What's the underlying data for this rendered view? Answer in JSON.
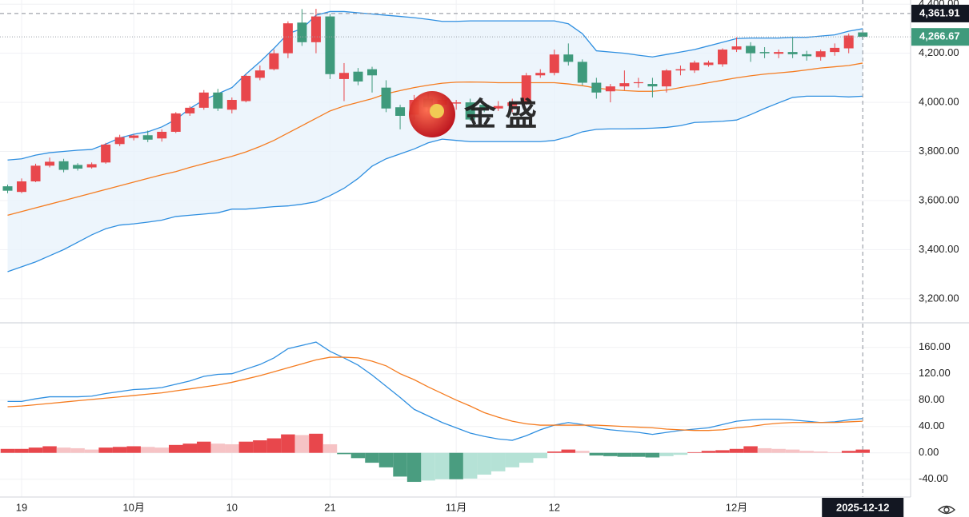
{
  "chart_data": [
    {
      "type": "candlestick",
      "categories": [
        null,
        "19",
        null,
        null,
        null,
        null,
        null,
        null,
        null,
        "10月",
        null,
        null,
        null,
        null,
        null,
        null,
        "10",
        null,
        null,
        null,
        null,
        null,
        null,
        "21",
        null,
        null,
        null,
        null,
        null,
        null,
        null,
        null,
        "11月",
        null,
        null,
        null,
        null,
        null,
        null,
        "12",
        null,
        null,
        null,
        null,
        null,
        null,
        null,
        null,
        null,
        null,
        null,
        null,
        "12月",
        null,
        null,
        null,
        null,
        null,
        null,
        null,
        null,
        null
      ],
      "open": [
        3658,
        3635,
        3678,
        3742,
        3760,
        3745,
        3735,
        3755,
        3830,
        3855,
        3866,
        3853,
        3880,
        3955,
        3978,
        4040,
        3970,
        4005,
        4100,
        4135,
        4200,
        4325,
        4245,
        4350,
        4095,
        4125,
        4135,
        4060,
        3980,
        3950,
        4015,
        3990,
        3995,
        4000,
        3990,
        3975,
        3985,
        3995,
        4110,
        4120,
        4195,
        4165,
        4080,
        4045,
        4065,
        4078,
        4075,
        4065,
        4130,
        4130,
        4152,
        4155,
        4215,
        4230,
        4205,
        4198,
        4205,
        4196,
        4185,
        4205,
        4220,
        4285
      ],
      "high": [
        3665,
        3690,
        3750,
        3775,
        3770,
        3752,
        3755,
        3835,
        3868,
        3870,
        3885,
        3890,
        3960,
        3985,
        4050,
        4055,
        4020,
        4115,
        4150,
        4215,
        4330,
        4380,
        4381,
        4360,
        4160,
        4140,
        4145,
        4090,
        3990,
        4030,
        4040,
        4020,
        4010,
        4015,
        3995,
        4005,
        4015,
        4120,
        4135,
        4215,
        4240,
        4175,
        4100,
        4075,
        4130,
        4100,
        4100,
        4135,
        4150,
        4170,
        4170,
        4220,
        4265,
        4245,
        4225,
        4215,
        4265,
        4210,
        4215,
        4240,
        4280,
        4290
      ],
      "low": [
        3630,
        3630,
        3675,
        3735,
        3715,
        3722,
        3730,
        3750,
        3822,
        3845,
        3838,
        3840,
        3875,
        3945,
        3970,
        3965,
        3955,
        4000,
        4090,
        4130,
        4180,
        4230,
        4200,
        4095,
        4005,
        4070,
        4040,
        3960,
        3890,
        3930,
        3960,
        3970,
        3970,
        3925,
        3960,
        3965,
        3960,
        3990,
        4100,
        4110,
        4150,
        4070,
        4015,
        4000,
        4050,
        4060,
        4020,
        4040,
        4110,
        4120,
        4145,
        4145,
        4205,
        4165,
        4180,
        4180,
        4180,
        4170,
        4170,
        4190,
        4200,
        4255
      ],
      "close": [
        3640,
        3678,
        3742,
        3758,
        3725,
        3730,
        3748,
        3828,
        3858,
        3865,
        3848,
        3880,
        3955,
        3978,
        4040,
        3975,
        4010,
        4108,
        4130,
        4200,
        4322,
        4245,
        4350,
        4115,
        4120,
        4085,
        4110,
        3975,
        3945,
        4010,
        3980,
        4010,
        4000,
        3930,
        3975,
        3985,
        4000,
        4110,
        4120,
        4195,
        4165,
        4080,
        4040,
        4065,
        4078,
        4082,
        4065,
        4130,
        4135,
        4162,
        4162,
        4215,
        4228,
        4200,
        4200,
        4205,
        4196,
        4188,
        4208,
        4222,
        4272,
        4267
      ],
      "bands": {
        "upper": [
          3765,
          3770,
          3785,
          3795,
          3800,
          3805,
          3808,
          3830,
          3855,
          3870,
          3880,
          3900,
          3930,
          3975,
          4010,
          4035,
          4060,
          4115,
          4165,
          4220,
          4280,
          4300,
          4355,
          4370,
          4370,
          4365,
          4360,
          4355,
          4350,
          4345,
          4338,
          4330,
          4330,
          4332,
          4332,
          4332,
          4332,
          4332,
          4332,
          4332,
          4320,
          4280,
          4210,
          4205,
          4200,
          4192,
          4185,
          4195,
          4205,
          4215,
          4230,
          4245,
          4260,
          4262,
          4262,
          4262,
          4265,
          4265,
          4270,
          4275,
          4290,
          4300
        ],
        "middle": [
          3540,
          3555,
          3570,
          3585,
          3600,
          3615,
          3630,
          3645,
          3660,
          3675,
          3690,
          3705,
          3718,
          3735,
          3750,
          3765,
          3780,
          3798,
          3820,
          3845,
          3875,
          3905,
          3935,
          3965,
          3985,
          4000,
          4015,
          4035,
          4048,
          4060,
          4070,
          4078,
          4082,
          4083,
          4082,
          4080,
          4080,
          4080,
          4080,
          4080,
          4075,
          4068,
          4058,
          4052,
          4048,
          4045,
          4045,
          4050,
          4060,
          4070,
          4080,
          4090,
          4100,
          4108,
          4115,
          4120,
          4125,
          4132,
          4140,
          4145,
          4150,
          4160
        ],
        "lower": [
          3310,
          3330,
          3350,
          3375,
          3400,
          3430,
          3460,
          3485,
          3500,
          3505,
          3512,
          3520,
          3535,
          3540,
          3545,
          3550,
          3565,
          3565,
          3570,
          3575,
          3578,
          3585,
          3595,
          3620,
          3650,
          3690,
          3740,
          3770,
          3790,
          3810,
          3835,
          3850,
          3845,
          3840,
          3840,
          3840,
          3840,
          3840,
          3840,
          3845,
          3860,
          3880,
          3890,
          3892,
          3892,
          3893,
          3895,
          3898,
          3905,
          3918,
          3920,
          3923,
          3928,
          3950,
          3975,
          3998,
          4020,
          4025,
          4025,
          4025,
          4022,
          4025
        ]
      },
      "up_color": "#e8474c",
      "down_color": "#3f9a7c",
      "band_color": "#2f8fe0",
      "middle_color": "#f57c20",
      "band_fill": "#e8f3fb",
      "ylim": [
        3105,
        4417
      ],
      "yticks": [
        {
          "value": 3200,
          "label": "3,200.00"
        },
        {
          "value": 3400,
          "label": "3,400.00"
        },
        {
          "value": 3600,
          "label": "3,600.00"
        },
        {
          "value": 3800,
          "label": "3,800.00"
        },
        {
          "value": 4000,
          "label": "4,000.00"
        },
        {
          "value": 4200,
          "label": "4,200.00"
        },
        {
          "value": 4400,
          "label": "4,400.00"
        }
      ],
      "grid": true,
      "crosshair_price": {
        "value": 4361.91,
        "label": "4,361.91"
      },
      "last_price": {
        "value": 4266.67,
        "label": "4,266.67"
      },
      "crosshair_date": "2025-12-12",
      "watermark": "金 盛"
    },
    {
      "type": "macd",
      "macd": [
        78,
        78,
        82,
        85,
        85,
        85,
        86,
        90,
        93,
        96,
        97,
        99,
        104,
        109,
        116,
        119,
        120,
        127,
        134,
        144,
        158,
        163,
        168,
        154,
        144,
        133,
        118,
        101,
        84,
        66,
        56,
        46,
        38,
        30,
        25,
        21,
        19,
        26,
        35,
        42,
        46,
        43,
        38,
        35,
        33,
        31,
        28,
        31,
        34,
        36,
        38,
        43,
        48,
        50,
        51,
        51,
        50,
        48,
        46,
        47,
        50,
        52
      ],
      "signal": [
        70,
        71,
        73,
        75,
        77,
        79,
        81,
        83,
        85,
        87,
        89,
        91,
        94,
        97,
        100,
        103,
        107,
        112,
        117,
        123,
        129,
        135,
        141,
        145,
        145,
        144,
        139,
        132,
        120,
        111,
        100,
        90,
        80,
        71,
        61,
        54,
        48,
        44,
        42,
        42,
        42,
        42,
        42,
        41,
        40,
        39,
        38,
        36,
        35,
        34,
        34,
        35,
        38,
        40,
        43,
        45,
        46,
        46,
        46,
        46,
        47,
        48
      ],
      "histogram": [
        6,
        6,
        8,
        10,
        8,
        7,
        5,
        8,
        9,
        10,
        9,
        8,
        12,
        14,
        17,
        14,
        13,
        17,
        19,
        22,
        28,
        27,
        29,
        13,
        -2,
        -8,
        -15,
        -22,
        -36,
        -44,
        -42,
        -40,
        -40,
        -39,
        -33,
        -28,
        -22,
        -15,
        -8,
        2,
        5,
        3,
        -4,
        -5,
        -6,
        -6,
        -7,
        -5,
        -3,
        1,
        3,
        4,
        6,
        10,
        7,
        6,
        5,
        3,
        2,
        1,
        3,
        5
      ],
      "macd_color": "#2f8fe0",
      "signal_color": "#f57c20",
      "hist_colors": {
        "up_strong": "#e8474c",
        "up_weak": "#f6c3c5",
        "down_strong": "#4a9d80",
        "down_weak": "#b5e2d6"
      },
      "ylim": [
        -67,
        196
      ],
      "yticks": [
        {
          "value": -40,
          "label": "-40.00"
        },
        {
          "value": 0,
          "label": "0.00"
        },
        {
          "value": 40,
          "label": "40.00"
        },
        {
          "value": 80,
          "label": "80.00"
        },
        {
          "value": 120,
          "label": "120.00"
        },
        {
          "value": 160,
          "label": "160.00"
        }
      ],
      "grid": true
    }
  ]
}
